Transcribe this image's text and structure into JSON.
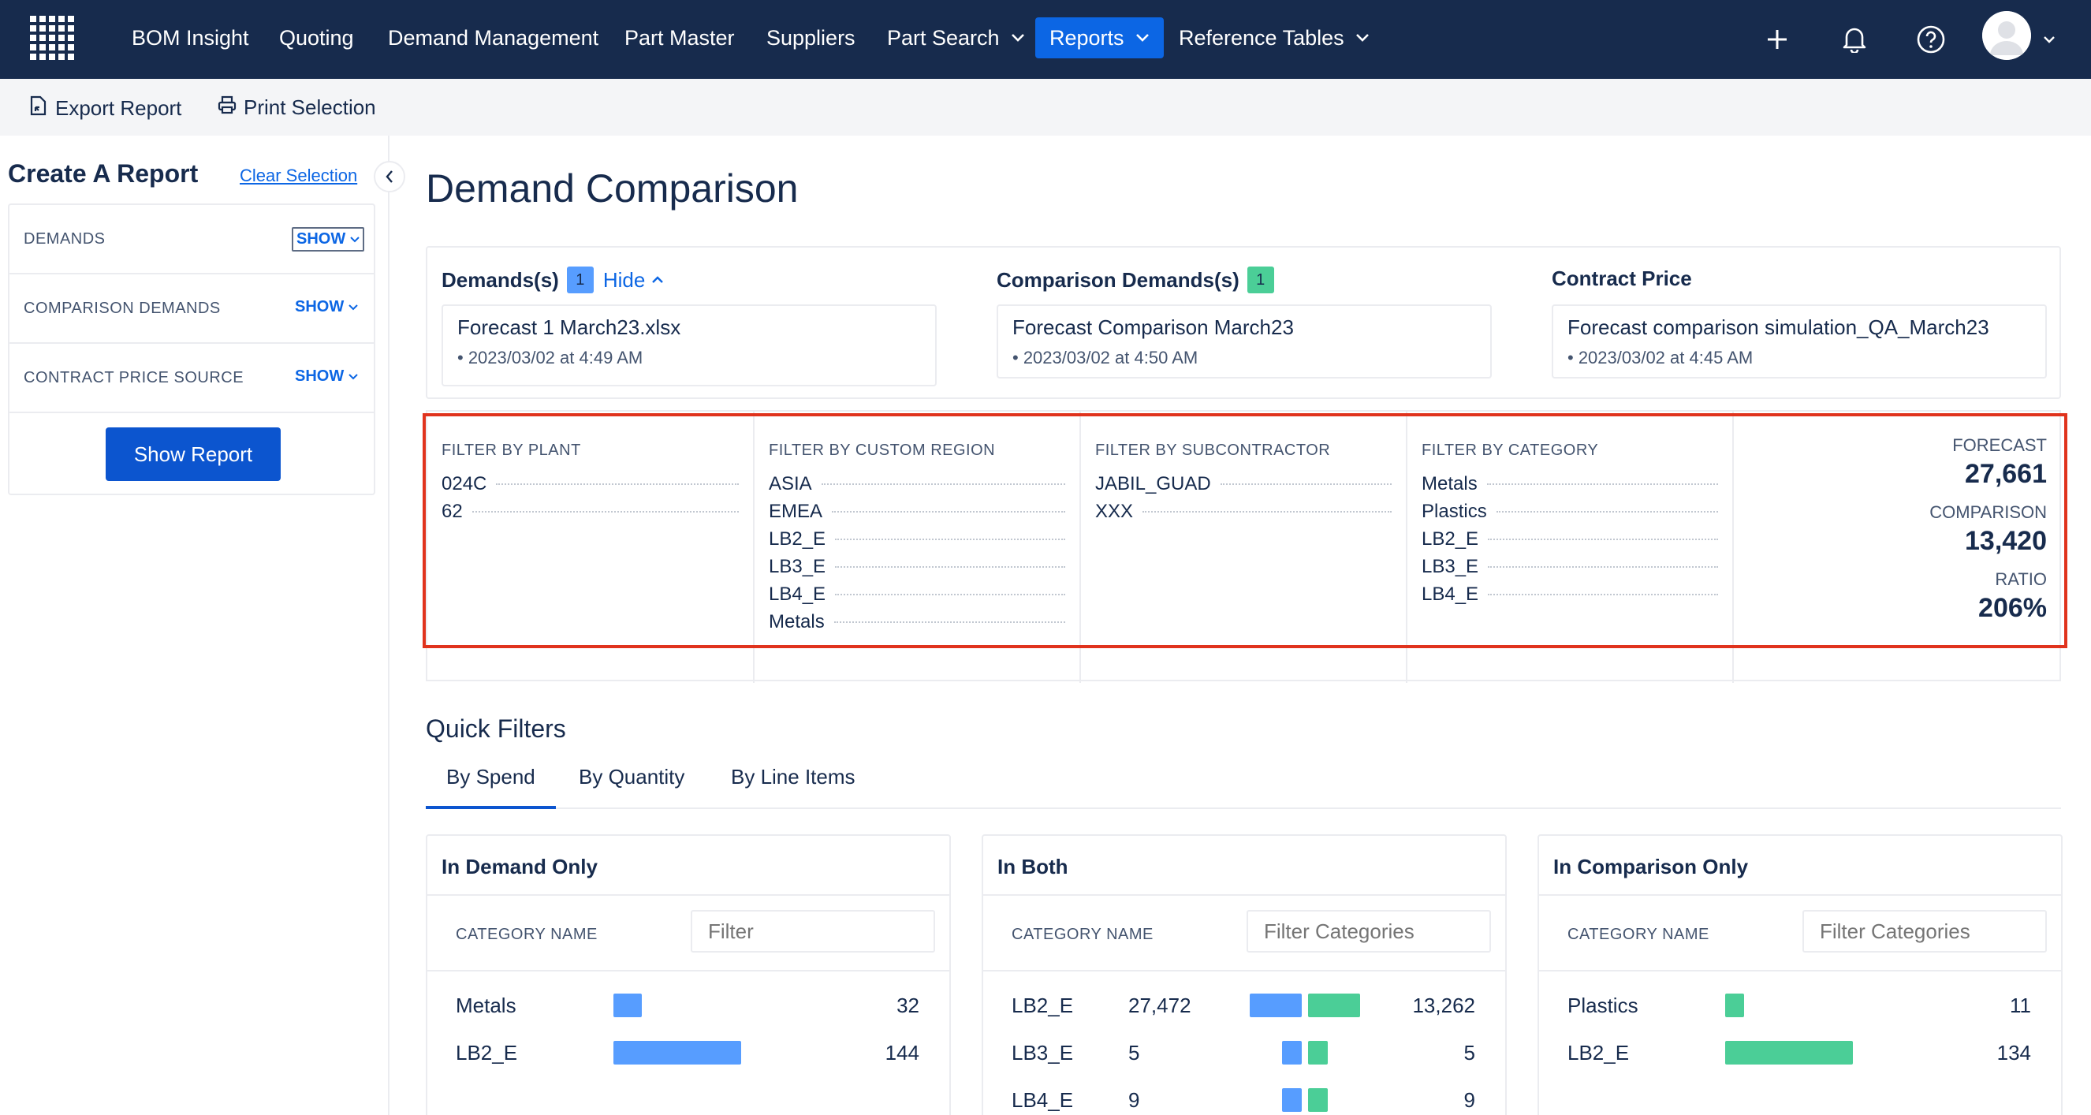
{
  "nav": {
    "items": [
      {
        "label": "BOM Insight"
      },
      {
        "label": "Quoting"
      },
      {
        "label": "Demand Management"
      },
      {
        "label": "Part Master"
      },
      {
        "label": "Suppliers"
      },
      {
        "label": "Part Search"
      },
      {
        "label": "Reports"
      },
      {
        "label": "Reference Tables"
      }
    ],
    "active": "Reports",
    "icons": [
      "plus-icon",
      "bell-icon",
      "help-icon",
      "avatar"
    ]
  },
  "toolbar": {
    "export_label": "Export Report",
    "print_label": "Print Selection"
  },
  "sidebar": {
    "title": "Create A Report",
    "clear_label": "Clear Selection",
    "rows": [
      {
        "label": "DEMANDS",
        "action": "SHOW"
      },
      {
        "label": "COMPARISON DEMANDS",
        "action": "SHOW"
      },
      {
        "label": "CONTRACT PRICE SOURCE",
        "action": "SHOW"
      }
    ],
    "show_report_label": "Show Report"
  },
  "main": {
    "title": "Demand Comparison",
    "demands": {
      "label": "Demands(s)",
      "count": "1",
      "hide_label": "Hide",
      "file": "Forecast 1 March23.xlsx",
      "date": "• 2023/03/02 at 4:49 AM"
    },
    "comparison": {
      "label": "Comparison Demands(s)",
      "count": "1",
      "file": "Forecast Comparison March23",
      "date": "• 2023/03/02 at 4:50 AM"
    },
    "contract": {
      "label": "Contract Price",
      "file": "Forecast comparison simulation_QA_March23",
      "date": "• 2023/03/02 at 4:45 AM"
    },
    "filters": [
      {
        "header": "FILTER BY PLANT",
        "items": [
          "024C",
          "62"
        ]
      },
      {
        "header": "FILTER BY CUSTOM REGION",
        "items": [
          "ASIA",
          "EMEA",
          "LB2_E",
          "LB3_E",
          "LB4_E",
          "Metals"
        ]
      },
      {
        "header": "FILTER BY SUBCONTRACTOR",
        "items": [
          "JABIL_GUAD",
          "XXX"
        ]
      },
      {
        "header": "FILTER BY CATEGORY",
        "items": [
          "Metals",
          "Plastics",
          "LB2_E",
          "LB3_E",
          "LB4_E"
        ]
      }
    ],
    "summary": {
      "forecast_label": "FORECAST",
      "forecast_value": "27,661",
      "comparison_label": "COMPARISON",
      "comparison_value": "13,420",
      "ratio_label": "RATIO",
      "ratio_value": "206%"
    },
    "quick_filters": {
      "title": "Quick Filters",
      "tabs": [
        "By Spend",
        "By Quantity",
        "By Line Items"
      ],
      "active_tab": "By Spend",
      "cards": [
        {
          "title": "In Demand Only",
          "column": "CATEGORY NAME",
          "filter_placeholder": "Filter",
          "rows": [
            {
              "name": "Metals",
              "value": "32",
              "bar": 0.22
            },
            {
              "name": "LB2_E",
              "value": "144",
              "bar": 1.0
            }
          ]
        },
        {
          "title": "In Both",
          "column": "CATEGORY NAME",
          "filter_placeholder": "Filter Categories",
          "rows": [
            {
              "name": "LB2_E",
              "demand": "27,472",
              "comparison": "13,262",
              "demand_bar": 1.0,
              "comparison_bar": 1.0
            },
            {
              "name": "LB3_E",
              "demand": "5",
              "comparison": "5",
              "demand_bar": 0.38,
              "comparison_bar": 0.38
            },
            {
              "name": "LB4_E",
              "demand": "9",
              "comparison": "9",
              "demand_bar": 0.38,
              "comparison_bar": 0.38
            }
          ]
        },
        {
          "title": "In Comparison Only",
          "column": "CATEGORY NAME",
          "filter_placeholder": "Filter Categories",
          "rows": [
            {
              "name": "Plastics",
              "value": "11",
              "bar": 0.14
            },
            {
              "name": "LB2_E",
              "value": "134",
              "bar": 1.0
            }
          ]
        }
      ]
    }
  },
  "colors": {
    "nav_bg": "#172b4d",
    "accent": "#0c66e4",
    "demand_bar": "#579dff",
    "comparison_bar": "#4bce97",
    "highlight": "#e0331d"
  }
}
